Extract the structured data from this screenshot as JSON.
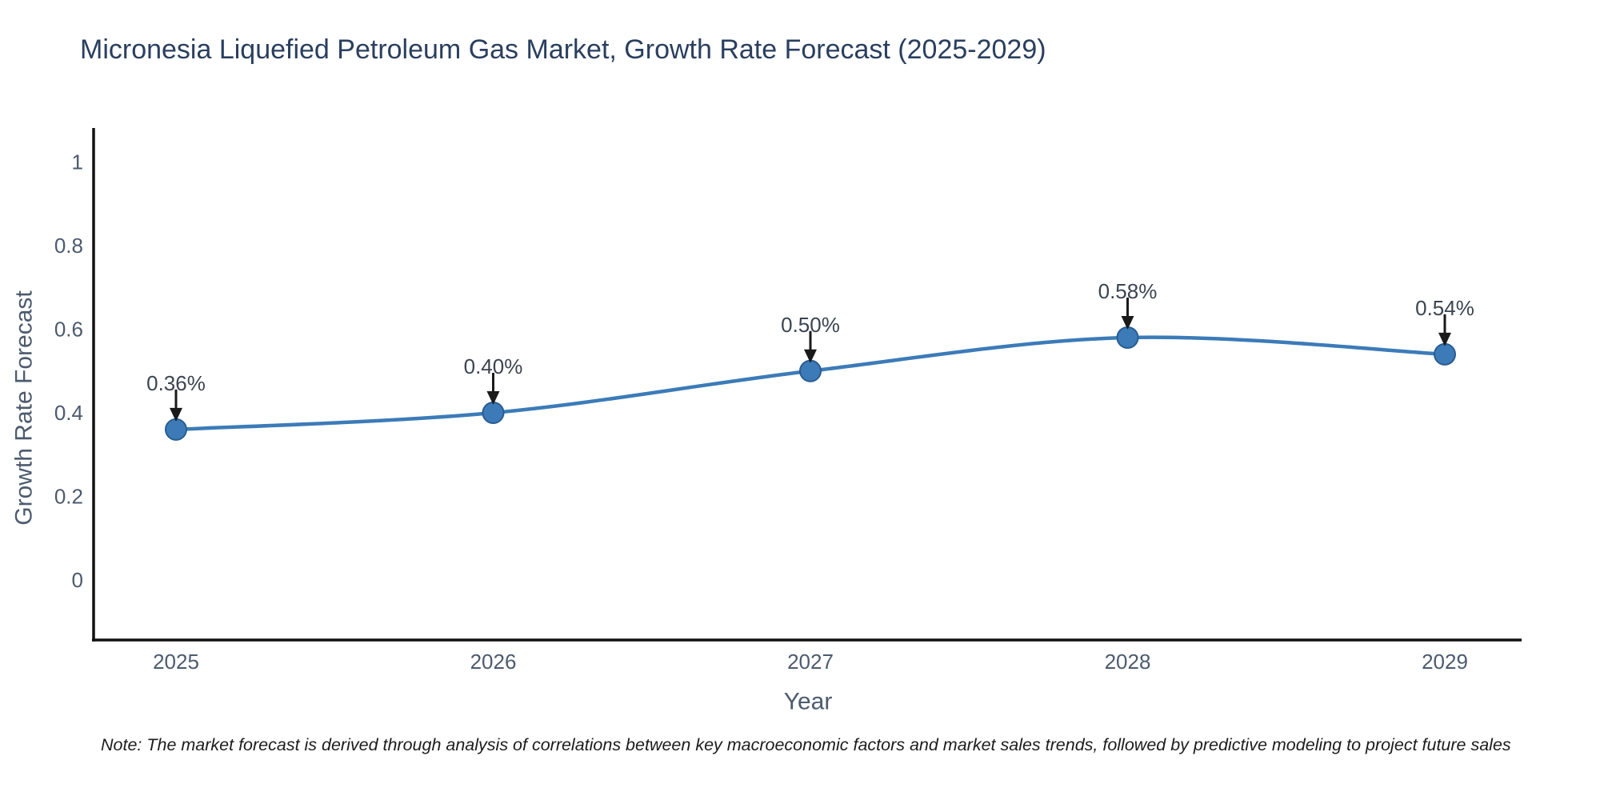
{
  "page": {
    "title": "Micronesia Liquefied Petroleum Gas Market, Growth Rate Forecast (2025-2029)",
    "note": "Note: The market forecast is derived through analysis of correlations between key macroeconomic factors and market sales trends, followed by predictive modeling to project future sales"
  },
  "chart_data": {
    "type": "line",
    "title": "Micronesia Liquefied Petroleum Gas Market, Growth Rate Forecast (2025-2029)",
    "line_shape": "spline",
    "grid": false,
    "legend_position": "none",
    "x": [
      2025,
      2026,
      2027,
      2028,
      2029
    ],
    "x_tick_labels": [
      "2025",
      "2026",
      "2027",
      "2028",
      "2029"
    ],
    "series": [
      {
        "name": "Growth Rate Forecast",
        "values": [
          0.36,
          0.4,
          0.5,
          0.58,
          0.54
        ],
        "point_labels": [
          "0.36%",
          "0.40%",
          "0.50%",
          "0.58%",
          "0.54%"
        ]
      }
    ],
    "xlabel": "Year",
    "ylabel": "Growth Rate Forecast",
    "ylim": [
      0,
      1.1
    ],
    "ytick_values": [
      0,
      0.2,
      0.4,
      0.6,
      0.8,
      1
    ],
    "ytick_labels": [
      "0",
      "0.2",
      "0.4",
      "0.6",
      "0.8",
      "1"
    ],
    "colors": {
      "line": "#3c7bb8",
      "marker_fill": "#3c7bb8",
      "marker_edge": "#2a5d92",
      "axis_line": "#111111",
      "title_text": "#2a3f5f",
      "tick_text": "#4c5b6e",
      "axis_title_text": "#4c5b6e",
      "annotation_text": "#3b4450",
      "annotation_arrow": "#1a1a1a",
      "note_text": "#1c1c1c",
      "background": "#ffffff"
    }
  }
}
